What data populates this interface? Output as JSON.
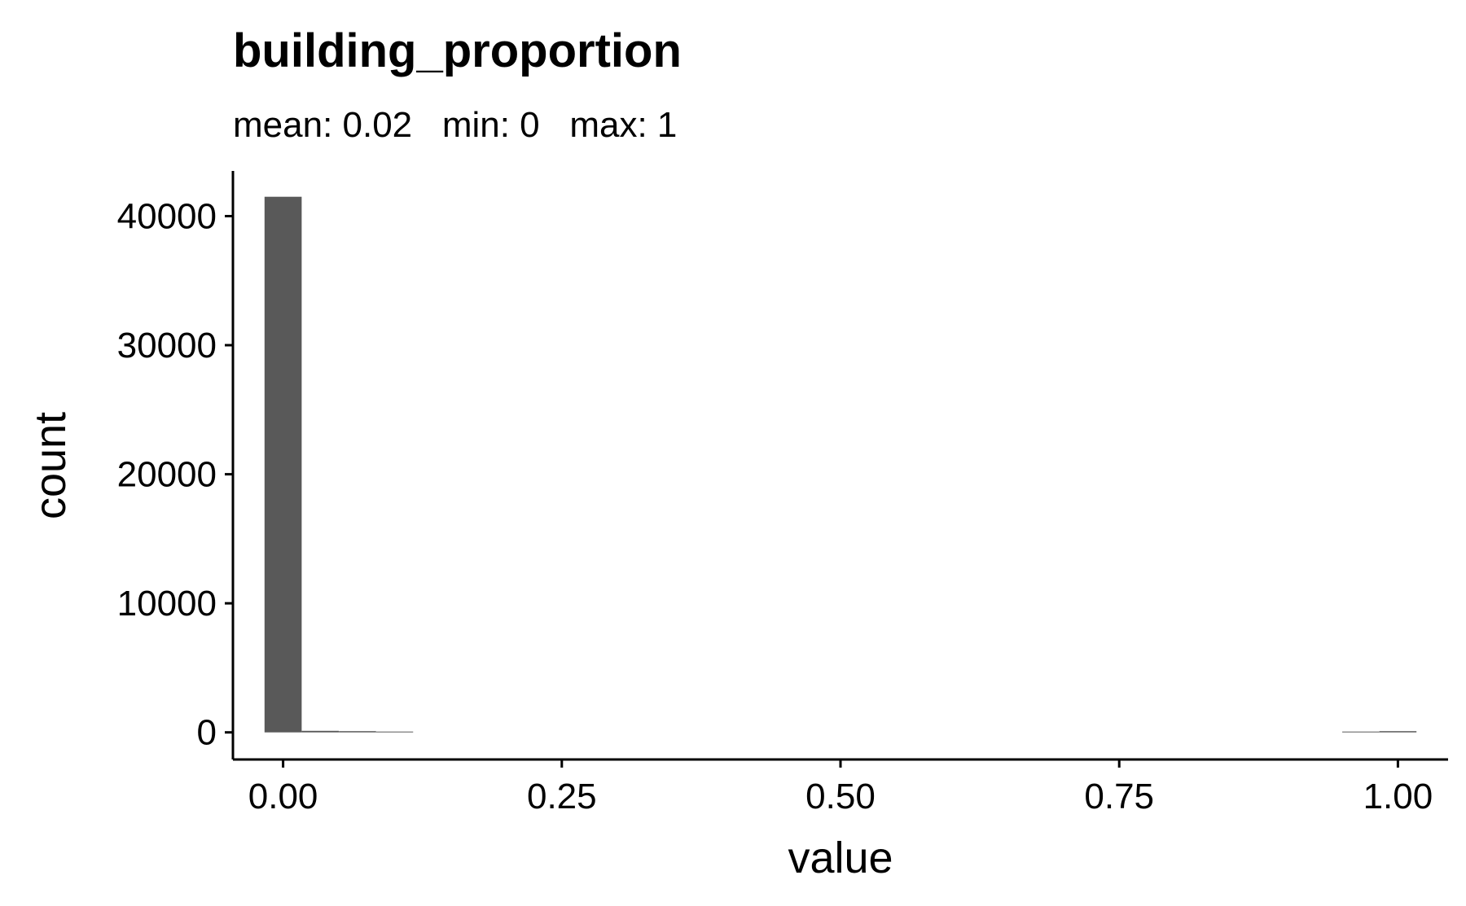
{
  "chart_data": {
    "type": "bar",
    "title": "building_proportion",
    "subtitle": "mean: 0.02   min: 0   max: 1",
    "xlabel": "value",
    "ylabel": "count",
    "xlim": [
      -0.045,
      1.045
    ],
    "ylim": [
      -2100,
      43500
    ],
    "x_ticks": [
      {
        "value": 0.0,
        "label": "0.00"
      },
      {
        "value": 0.25,
        "label": "0.25"
      },
      {
        "value": 0.5,
        "label": "0.50"
      },
      {
        "value": 0.75,
        "label": "0.75"
      },
      {
        "value": 1.0,
        "label": "1.00"
      }
    ],
    "y_ticks": [
      {
        "value": 0,
        "label": "0"
      },
      {
        "value": 10000,
        "label": "10000"
      },
      {
        "value": 20000,
        "label": "20000"
      },
      {
        "value": 30000,
        "label": "30000"
      },
      {
        "value": 40000,
        "label": "40000"
      }
    ],
    "bin_width": 0.0333,
    "bins": [
      {
        "x": 0.0,
        "count": 41500
      },
      {
        "x": 0.0333,
        "count": 120
      },
      {
        "x": 0.0667,
        "count": 60
      },
      {
        "x": 0.1,
        "count": 0
      },
      {
        "x": 0.9667,
        "count": 0
      },
      {
        "x": 1.0,
        "count": 40
      }
    ],
    "bar_color": "#595959",
    "grid": false
  }
}
